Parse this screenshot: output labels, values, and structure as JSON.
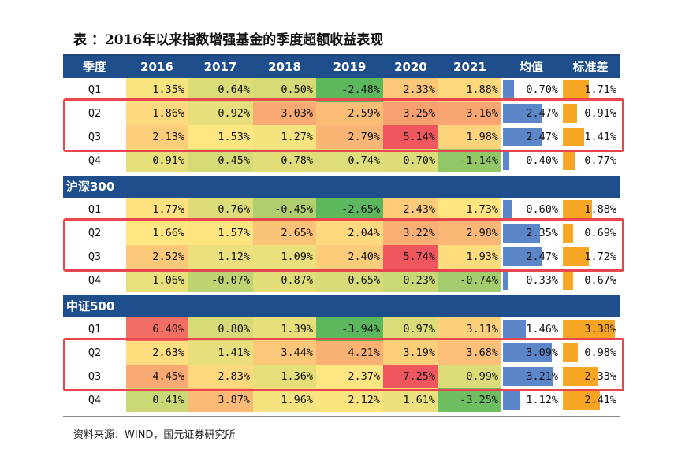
{
  "title": "表 ：2016年以来指数增强基金的季度超额收益表现",
  "source": "资料来源：WIND，国元证券研究所",
  "chart_data": {
    "type": "table",
    "columns": [
      "季度",
      "2016",
      "2017",
      "2018",
      "2019",
      "2020",
      "2021",
      "均值",
      "标准差"
    ],
    "groups": [
      {
        "name": "",
        "rows": [
          {
            "q": "Q1",
            "values": [
              "1.35%",
              "0.64%",
              "0.50%",
              "-2.48%",
              "2.33%",
              "1.88%"
            ],
            "mean": "0.70%",
            "std": "1.71%",
            "mean_num": 0.7,
            "std_num": 1.71
          },
          {
            "q": "Q2",
            "values": [
              "1.86%",
              "0.92%",
              "3.03%",
              "2.59%",
              "3.25%",
              "3.16%"
            ],
            "mean": "2.47%",
            "std": "0.91%",
            "mean_num": 2.47,
            "std_num": 0.91
          },
          {
            "q": "Q3",
            "values": [
              "2.13%",
              "1.53%",
              "1.27%",
              "2.79%",
              "5.14%",
              "1.98%"
            ],
            "mean": "2.47%",
            "std": "1.41%",
            "mean_num": 2.47,
            "std_num": 1.41
          },
          {
            "q": "Q4",
            "values": [
              "0.91%",
              "0.45%",
              "0.78%",
              "0.74%",
              "0.70%",
              "-1.14%"
            ],
            "mean": "0.40%",
            "std": "0.77%",
            "mean_num": 0.4,
            "std_num": 0.77
          }
        ]
      },
      {
        "name": "沪深300",
        "rows": [
          {
            "q": "Q1",
            "values": [
              "1.77%",
              "0.76%",
              "-0.45%",
              "-2.65%",
              "2.43%",
              "1.73%"
            ],
            "mean": "0.60%",
            "std": "1.88%",
            "mean_num": 0.6,
            "std_num": 1.88
          },
          {
            "q": "Q2",
            "values": [
              "1.66%",
              "1.57%",
              "2.65%",
              "2.04%",
              "3.22%",
              "2.98%"
            ],
            "mean": "2.35%",
            "std": "0.69%",
            "mean_num": 2.35,
            "std_num": 0.69
          },
          {
            "q": "Q3",
            "values": [
              "2.52%",
              "1.12%",
              "1.09%",
              "2.40%",
              "5.74%",
              "1.93%"
            ],
            "mean": "2.47%",
            "std": "1.72%",
            "mean_num": 2.47,
            "std_num": 1.72
          },
          {
            "q": "Q4",
            "values": [
              "1.06%",
              "-0.07%",
              "0.87%",
              "0.65%",
              "0.23%",
              "-0.74%"
            ],
            "mean": "0.33%",
            "std": "0.67%",
            "mean_num": 0.33,
            "std_num": 0.67
          }
        ]
      },
      {
        "name": "中证500",
        "rows": [
          {
            "q": "Q1",
            "values": [
              "6.40%",
              "0.80%",
              "1.39%",
              "-3.94%",
              "0.97%",
              "3.11%"
            ],
            "mean": "1.46%",
            "std": "3.38%",
            "mean_num": 1.46,
            "std_num": 3.38
          },
          {
            "q": "Q2",
            "values": [
              "2.63%",
              "1.41%",
              "3.44%",
              "4.21%",
              "3.19%",
              "3.68%"
            ],
            "mean": "3.09%",
            "std": "0.98%",
            "mean_num": 3.09,
            "std_num": 0.98
          },
          {
            "q": "Q3",
            "values": [
              "4.45%",
              "2.83%",
              "1.36%",
              "2.37%",
              "7.25%",
              "0.99%"
            ],
            "mean": "3.21%",
            "std": "2.33%",
            "mean_num": 3.21,
            "std_num": 2.33
          },
          {
            "q": "Q4",
            "values": [
              "0.41%",
              "3.87%",
              "1.96%",
              "2.12%",
              "1.61%",
              "-3.25%"
            ],
            "mean": "1.12%",
            "std": "2.41%",
            "mean_num": 1.12,
            "std_num": 2.41
          }
        ]
      }
    ],
    "heat_colors": {
      "low": "#5cb85c",
      "mid": "#ffe680",
      "high": "#f0565e"
    },
    "mean_bar_color": "#5b86c9",
    "std_bar_color": "#f6a623",
    "highlight_color": "#e8454f",
    "header_color": "#1f4e8c"
  }
}
